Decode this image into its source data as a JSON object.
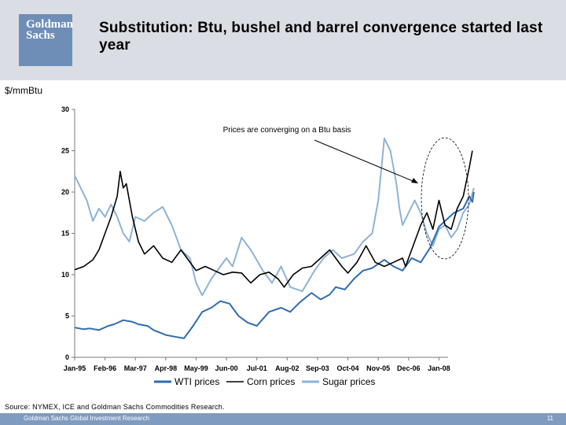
{
  "header": {
    "logo_line1": "Goldman",
    "logo_line2": "Sachs",
    "title": "Substitution: Btu, bushel and barrel convergence started last year"
  },
  "chart_data": {
    "type": "line",
    "title": "",
    "ylabel": "$/mmBtu",
    "xlabel": "",
    "ylim": [
      0,
      30
    ],
    "yticks": [
      0,
      5,
      10,
      15,
      20,
      25,
      30
    ],
    "xticks": [
      "Jan-95",
      "Feb-96",
      "Mar-97",
      "Apr-98",
      "May-99",
      "Jun-00",
      "Jul-01",
      "Aug-02",
      "Sep-03",
      "Oct-04",
      "Nov-05",
      "Dec-06",
      "Jan-08"
    ],
    "annotation": "Prices are converging on a Btu basis",
    "legend_position": "bottom",
    "series": [
      {
        "name": "WTI prices",
        "color": "#2f6cb0",
        "x": [
          0,
          0.3,
          0.5,
          0.8,
          1.1,
          1.3,
          1.6,
          1.9,
          2.1,
          2.4,
          2.6,
          3.0,
          3.3,
          3.6,
          3.9,
          4.2,
          4.5,
          4.8,
          5.1,
          5.4,
          5.7,
          6.0,
          6.4,
          6.8,
          7.1,
          7.4,
          7.8,
          8.1,
          8.4,
          8.6,
          8.9,
          9.2,
          9.5,
          9.8,
          10.2,
          10.5,
          10.8,
          11.1,
          11.4,
          11.7,
          12.0,
          12.2,
          12.5,
          12.8,
          13.0,
          13.1,
          13.15
        ],
        "values": [
          3.6,
          3.4,
          3.5,
          3.3,
          3.8,
          4.0,
          4.5,
          4.3,
          4.0,
          3.8,
          3.3,
          2.7,
          2.5,
          2.3,
          3.8,
          5.5,
          6.0,
          6.8,
          6.5,
          5.0,
          4.2,
          3.8,
          5.5,
          6.0,
          5.5,
          6.6,
          7.8,
          7.0,
          7.6,
          8.5,
          8.2,
          9.5,
          10.5,
          10.8,
          11.8,
          11.0,
          10.5,
          12.0,
          11.5,
          13.2,
          15.8,
          16.5,
          17.5,
          18.0,
          19.5,
          18.8,
          20.0
        ]
      },
      {
        "name": "Corn prices",
        "color": "#000000",
        "x": [
          0,
          0.3,
          0.6,
          0.8,
          1.0,
          1.2,
          1.4,
          1.5,
          1.6,
          1.7,
          1.9,
          2.1,
          2.3,
          2.6,
          2.9,
          3.2,
          3.5,
          3.7,
          4.0,
          4.3,
          4.6,
          4.9,
          5.2,
          5.5,
          5.8,
          6.1,
          6.4,
          6.7,
          6.9,
          7.2,
          7.5,
          7.8,
          8.1,
          8.4,
          8.8,
          9.0,
          9.3,
          9.6,
          9.9,
          10.2,
          10.5,
          10.8,
          10.9,
          11.2,
          11.4,
          11.6,
          11.8,
          12.0,
          12.2,
          12.4,
          12.6,
          12.8,
          13.0,
          13.1
        ],
        "values": [
          10.6,
          11.0,
          11.8,
          13.0,
          15.0,
          17.0,
          19.5,
          22.5,
          20.5,
          21.0,
          17.0,
          14.0,
          12.5,
          13.5,
          12.0,
          11.5,
          13.0,
          12.0,
          10.5,
          11.0,
          10.5,
          10.0,
          10.3,
          10.2,
          9.0,
          10.0,
          10.3,
          9.5,
          8.5,
          10.0,
          10.8,
          11.0,
          12.0,
          13.0,
          11.0,
          10.2,
          11.5,
          13.5,
          11.5,
          11.0,
          11.5,
          12.0,
          11.0,
          14.0,
          16.0,
          17.5,
          15.5,
          19.0,
          16.0,
          15.5,
          18.0,
          19.5,
          23.0,
          25.0
        ]
      },
      {
        "name": "Sugar prices",
        "color": "#8db3d6",
        "x": [
          0,
          0.2,
          0.4,
          0.6,
          0.8,
          1.0,
          1.2,
          1.4,
          1.6,
          1.8,
          2.0,
          2.3,
          2.6,
          2.9,
          3.2,
          3.5,
          3.8,
          4.0,
          4.2,
          4.5,
          4.8,
          5.0,
          5.2,
          5.5,
          5.8,
          6.2,
          6.5,
          6.8,
          7.1,
          7.5,
          7.9,
          8.2,
          8.5,
          8.8,
          9.2,
          9.5,
          9.8,
          10.0,
          10.2,
          10.4,
          10.6,
          10.7,
          10.8,
          11.0,
          11.2,
          11.4,
          11.6,
          11.8,
          12.0,
          12.2,
          12.4,
          12.6,
          12.8,
          13.0,
          13.15
        ],
        "values": [
          22.0,
          20.5,
          19.0,
          16.5,
          18.0,
          17.0,
          18.5,
          17.0,
          15.0,
          14.0,
          17.0,
          16.5,
          17.5,
          18.2,
          16.0,
          13.0,
          12.0,
          9.0,
          7.5,
          9.5,
          11.0,
          12.0,
          11.0,
          14.5,
          13.0,
          10.5,
          9.0,
          11.0,
          8.5,
          8.0,
          10.5,
          12.0,
          13.0,
          12.0,
          12.5,
          14.0,
          15.0,
          19.0,
          26.5,
          25.0,
          21.0,
          18.0,
          16.0,
          17.5,
          19.0,
          17.5,
          15.0,
          13.5,
          15.5,
          16.0,
          14.5,
          15.5,
          17.5,
          18.5,
          20.5
        ]
      }
    ]
  },
  "source": "Source: NYMEX, ICE and Goldman Sachs Commodities Research.",
  "footer": {
    "left": "Goldman Sachs Global Investment Research",
    "page": "11"
  }
}
